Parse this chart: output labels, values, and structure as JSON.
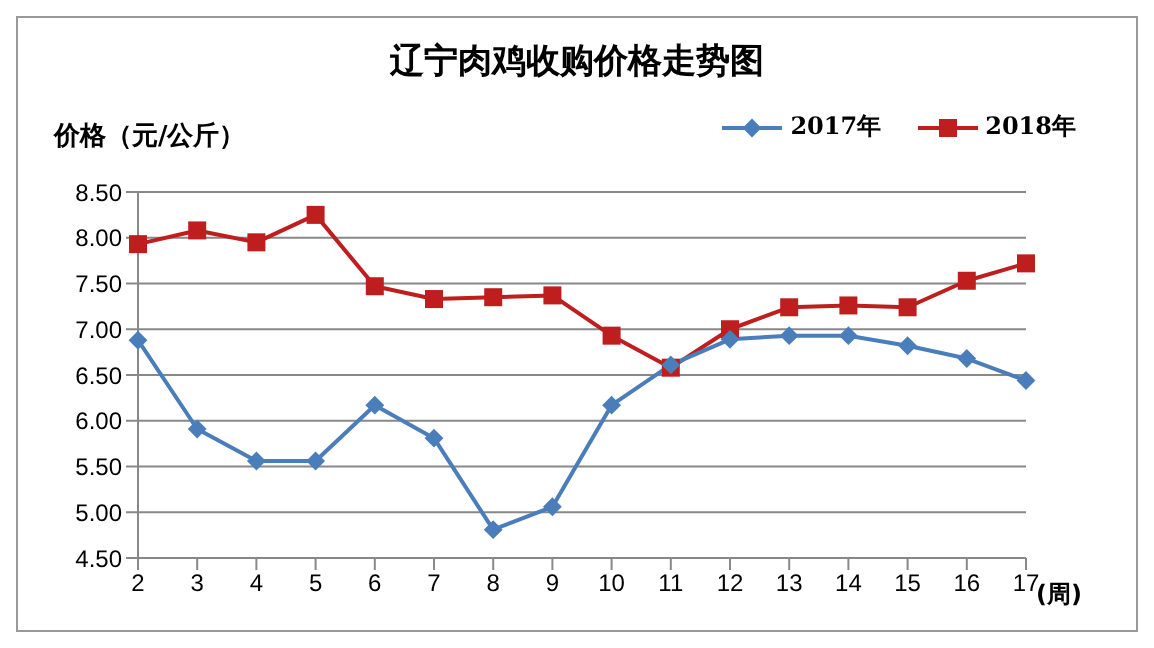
{
  "chart_data": {
    "type": "line",
    "title": "辽宁肉鸡收购价格走势图",
    "ylabel": "价格（元/公斤）",
    "xlabel": "(周)",
    "categories": [
      "2",
      "3",
      "4",
      "5",
      "6",
      "7",
      "8",
      "9",
      "10",
      "11",
      "12",
      "13",
      "14",
      "15",
      "16",
      "17"
    ],
    "series": [
      {
        "name": "2017年",
        "color": "#4a7ebb",
        "marker": "diamond",
        "values": [
          6.88,
          5.91,
          5.56,
          5.56,
          6.17,
          5.81,
          4.81,
          5.06,
          6.17,
          6.61,
          6.89,
          6.93,
          6.93,
          6.82,
          6.68,
          6.44
        ]
      },
      {
        "name": "2018年",
        "color": "#be1e1e",
        "marker": "square",
        "values": [
          7.93,
          8.08,
          7.95,
          8.25,
          7.47,
          7.33,
          7.35,
          7.37,
          6.93,
          6.58,
          7.0,
          7.24,
          7.26,
          7.24,
          7.53,
          7.72
        ]
      }
    ],
    "ylim": [
      4.5,
      8.5
    ],
    "yticks": [
      {
        "value": 4.5,
        "label": "4.50"
      },
      {
        "value": 5,
        "label": "5.00"
      },
      {
        "value": 5.5,
        "label": "5.50"
      },
      {
        "value": 6,
        "label": "6.00"
      },
      {
        "value": 6.5,
        "label": "6.50"
      },
      {
        "value": 7,
        "label": "7.00"
      },
      {
        "value": 7.5,
        "label": "7.50"
      },
      {
        "value": 8,
        "label": "8.00"
      },
      {
        "value": 8.5,
        "label": "8.50"
      }
    ],
    "grid": "y",
    "legend": "top right"
  }
}
